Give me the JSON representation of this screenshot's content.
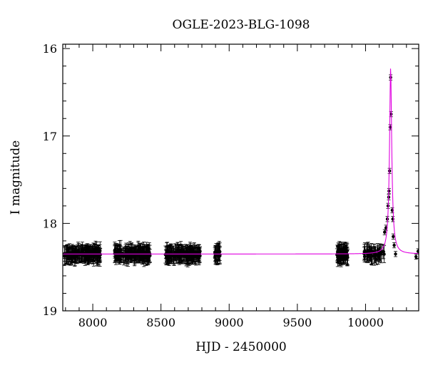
{
  "chart_data": {
    "type": "scatter",
    "title": "OGLE-2023-BLG-1098",
    "xlabel": "HJD - 2450000",
    "ylabel": "I magnitude",
    "xlim": [
      7780,
      10390
    ],
    "ylim": [
      19.0,
      15.95
    ],
    "y_inverted": true,
    "x_ticks": [
      8000,
      8500,
      9000,
      9500,
      10000
    ],
    "y_ticks": [
      16,
      17,
      18,
      19
    ],
    "x_tick_labels": [
      "8000",
      "8500",
      "9000",
      "9500",
      "10000"
    ],
    "y_tick_labels": [
      "16",
      "17",
      "18",
      "19"
    ],
    "baseline_mag": 18.35,
    "model_color": "#e000e0",
    "point_color": "#000000",
    "observing_seasons": [
      {
        "start": 7790,
        "end": 8060,
        "n": 170
      },
      {
        "start": 8160,
        "end": 8420,
        "n": 170
      },
      {
        "start": 8530,
        "end": 8790,
        "n": 160
      },
      {
        "start": 8895,
        "end": 8935,
        "n": 30
      },
      {
        "start": 9790,
        "end": 9870,
        "n": 70
      },
      {
        "start": 9985,
        "end": 10140,
        "n": 50
      }
    ],
    "peak_points": [
      {
        "x": 10140,
        "y": 18.1
      },
      {
        "x": 10150,
        "y": 18.05
      },
      {
        "x": 10160,
        "y": 17.95
      },
      {
        "x": 10165,
        "y": 17.8
      },
      {
        "x": 10170,
        "y": 17.7
      },
      {
        "x": 10172,
        "y": 17.63
      },
      {
        "x": 10176,
        "y": 17.4
      },
      {
        "x": 10181,
        "y": 16.9
      },
      {
        "x": 10184,
        "y": 16.33
      },
      {
        "x": 10187,
        "y": 16.75
      },
      {
        "x": 10196,
        "y": 17.85
      },
      {
        "x": 10200,
        "y": 17.95
      },
      {
        "x": 10203,
        "y": 18.15
      },
      {
        "x": 10210,
        "y": 18.25
      },
      {
        "x": 10220,
        "y": 18.35
      },
      {
        "x": 10370,
        "y": 18.38
      },
      {
        "x": 10385,
        "y": 18.32
      }
    ],
    "model_peak": {
      "t0": 10184,
      "peak_mag": 16.22,
      "width_days": 6
    }
  }
}
